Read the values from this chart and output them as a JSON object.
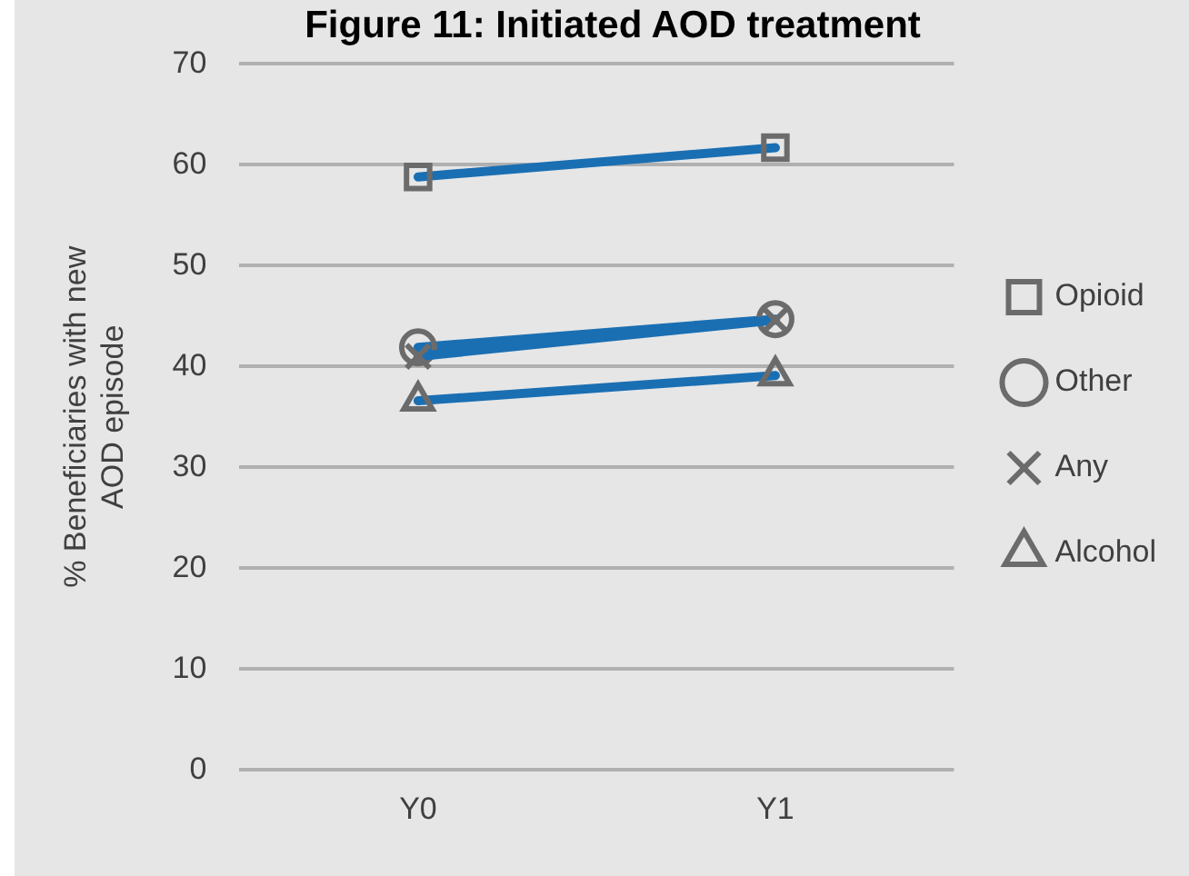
{
  "chart_data": {
    "type": "line",
    "title": "Figure 11: Initiated AOD treatment",
    "ylabel": "% Beneficiaries with new AOD episode",
    "categories": [
      "Y0",
      "Y1"
    ],
    "series": [
      {
        "name": "Opioid",
        "color": "#1a6fb3",
        "marker": "square",
        "values": [
          58.8,
          61.7
        ]
      },
      {
        "name": "Other",
        "color": "#1a6fb3",
        "marker": "circle",
        "values": [
          41.9,
          44.7
        ]
      },
      {
        "name": "Any",
        "color": "#1a6fb3",
        "marker": "cross",
        "values": [
          41.0,
          44.6
        ]
      },
      {
        "name": "Alcohol",
        "color": "#1a6fb3",
        "marker": "triangle",
        "values": [
          36.6,
          39.1
        ]
      }
    ],
    "ylim": [
      0,
      70
    ],
    "yticks": [
      0,
      10,
      20,
      30,
      40,
      50,
      60,
      70
    ],
    "grid": "y",
    "legend": "right"
  }
}
